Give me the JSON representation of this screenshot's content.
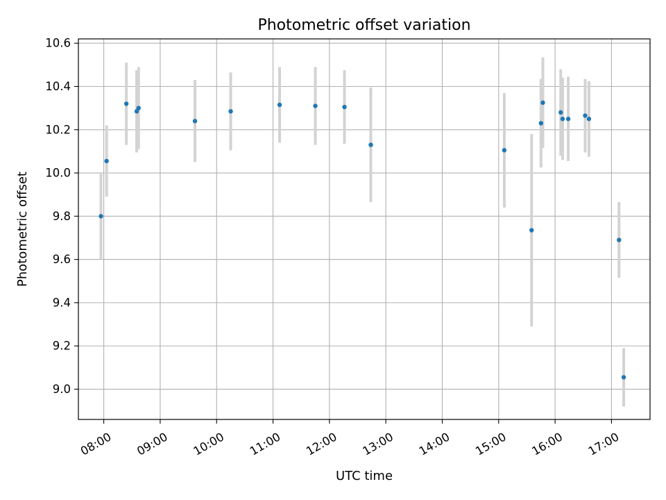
{
  "chart_data": {
    "type": "scatter",
    "title": "Photometric offset variation",
    "xlabel": "UTC time",
    "ylabel": "Photometric offset",
    "x_ticks": [
      "08:00",
      "09:00",
      "10:00",
      "11:00",
      "12:00",
      "13:00",
      "14:00",
      "15:00",
      "16:00",
      "17:00"
    ],
    "y_ticks": [
      "9.0",
      "9.2",
      "9.4",
      "9.6",
      "9.8",
      "10.0",
      "10.2",
      "10.4",
      "10.6"
    ],
    "xlim": [
      "07:33",
      "17:41"
    ],
    "ylim": [
      8.86,
      10.62
    ],
    "grid": true,
    "x_tick_rotation_deg": 30,
    "colors": {
      "point": "#1f77b4",
      "errorbar": "#d3d3d3"
    },
    "points": [
      {
        "x": "07:57",
        "y": 9.8,
        "err": 0.2
      },
      {
        "x": "08:03",
        "y": 10.055,
        "err": 0.165
      },
      {
        "x": "08:24",
        "y": 10.32,
        "err": 0.19
      },
      {
        "x": "08:35",
        "y": 10.285,
        "err": 0.19
      },
      {
        "x": "08:37",
        "y": 10.3,
        "err": 0.19
      },
      {
        "x": "09:37",
        "y": 10.24,
        "err": 0.19
      },
      {
        "x": "10:15",
        "y": 10.285,
        "err": 0.18
      },
      {
        "x": "11:07",
        "y": 10.315,
        "err": 0.175
      },
      {
        "x": "11:45",
        "y": 10.31,
        "err": 0.18
      },
      {
        "x": "12:16",
        "y": 10.305,
        "err": 0.17
      },
      {
        "x": "12:44",
        "y": 10.13,
        "err": 0.265
      },
      {
        "x": "15:06",
        "y": 10.105,
        "err": 0.265
      },
      {
        "x": "15:35",
        "y": 9.735,
        "err": 0.445
      },
      {
        "x": "15:45",
        "y": 10.23,
        "err": 0.205
      },
      {
        "x": "15:47",
        "y": 10.325,
        "err": 0.21
      },
      {
        "x": "16:06",
        "y": 10.28,
        "err": 0.2
      },
      {
        "x": "16:08",
        "y": 10.25,
        "err": 0.19
      },
      {
        "x": "16:14",
        "y": 10.25,
        "err": 0.195
      },
      {
        "x": "16:32",
        "y": 10.265,
        "err": 0.17
      },
      {
        "x": "16:36",
        "y": 10.25,
        "err": 0.175
      },
      {
        "x": "17:08",
        "y": 9.69,
        "err": 0.175
      },
      {
        "x": "17:13",
        "y": 9.055,
        "err": 0.135
      }
    ]
  }
}
